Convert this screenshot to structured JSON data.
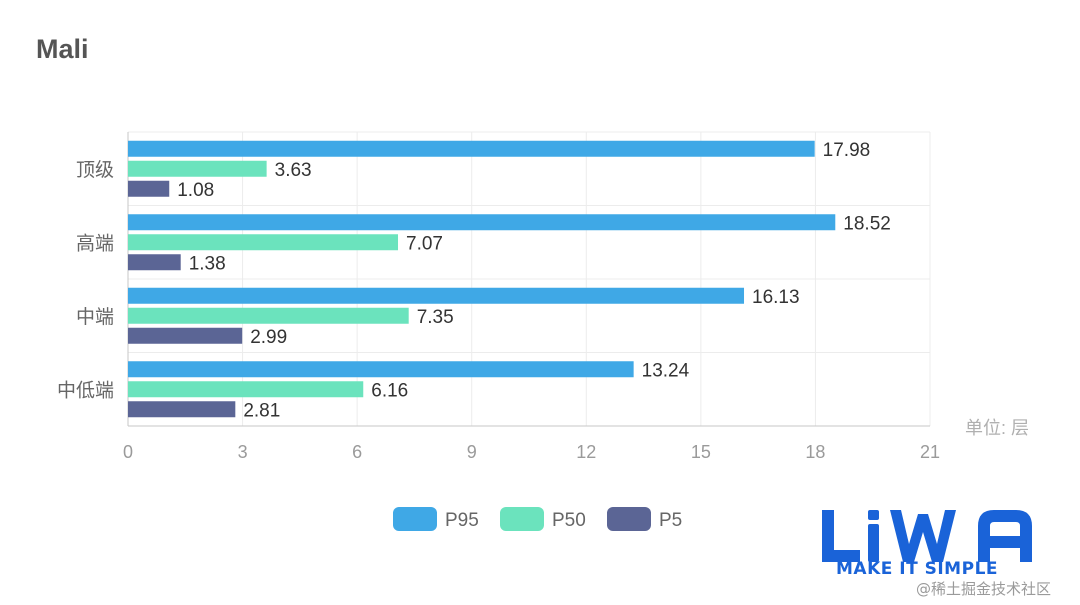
{
  "title": "Mali",
  "unit_label": "单位: 层",
  "watermark": "@稀土掘金技术社区",
  "logo": {
    "wordmark": "LiWA",
    "tagline": "MAKE IT SIMPLE",
    "color": "#1a63d8"
  },
  "chart_data": {
    "type": "bar",
    "orientation": "horizontal",
    "categories": [
      "顶级",
      "高端",
      "中端",
      "中低端"
    ],
    "series": [
      {
        "name": "P95",
        "color": "#3fa8e6",
        "values": [
          17.98,
          18.52,
          16.13,
          13.24
        ]
      },
      {
        "name": "P50",
        "color": "#6be3bd",
        "values": [
          3.63,
          7.07,
          7.35,
          6.16
        ]
      },
      {
        "name": "P5",
        "color": "#5b6595",
        "values": [
          1.08,
          1.38,
          2.99,
          2.81
        ]
      }
    ],
    "xlim": [
      0,
      21
    ],
    "xticks": [
      0,
      3,
      6,
      9,
      12,
      15,
      18,
      21
    ],
    "grid": true,
    "data_labels": true,
    "legend_position": "bottom-center"
  }
}
